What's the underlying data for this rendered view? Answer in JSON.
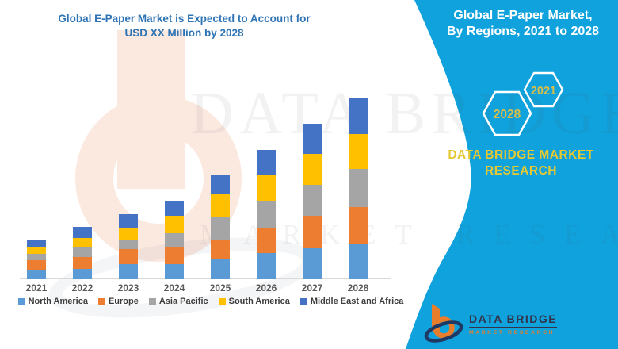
{
  "chart": {
    "title_line1": "Global E-Paper Market is Expected to Account for",
    "title_line2": "USD XX Million by 2028",
    "title_color": "#2E74B5",
    "axis_line_color": "#D9D9D9",
    "axis_label_color": "#595959"
  },
  "chart_data": {
    "type": "bar",
    "stacked": true,
    "title": "Global E-Paper Market is Expected to Account for USD XX Million by 2028",
    "categories": [
      "2021",
      "2022",
      "2023",
      "2024",
      "2025",
      "2026",
      "2027",
      "2028"
    ],
    "series": [
      {
        "name": "North America",
        "color": "#5B9BD5",
        "values": [
          12,
          13,
          19,
          19,
          26,
          33,
          39,
          44
        ]
      },
      {
        "name": "Europe",
        "color": "#ED7D31",
        "values": [
          12,
          15,
          19,
          21,
          23,
          32,
          41,
          47
        ]
      },
      {
        "name": "Asia Pacific",
        "color": "#A5A5A5",
        "values": [
          8,
          13,
          12,
          18,
          30,
          34,
          39,
          48
        ]
      },
      {
        "name": "South America",
        "color": "#FFC000",
        "values": [
          9,
          11,
          15,
          22,
          28,
          32,
          39,
          44
        ]
      },
      {
        "name": "Middle East and Africa",
        "color": "#4472C4",
        "values": [
          9,
          14,
          17,
          19,
          24,
          32,
          38,
          45
        ]
      }
    ],
    "totals": [
      50,
      66,
      82,
      99,
      131,
      163,
      196,
      228
    ],
    "xlabel": "",
    "ylabel": "",
    "ylim": [
      0,
      240
    ],
    "y_axis_labeled": false,
    "gridlines": false,
    "legend_position": "bottom",
    "note": "Y values estimated from bar pixel heights; axis is unlabeled (values shown as USD XX Million)"
  },
  "panel": {
    "bg_color": "#0FA2DC",
    "title_line1": "Global E-Paper Market,",
    "title_line2": "By Regions, 2021 to 2028",
    "hexagons": [
      {
        "label": "2028"
      },
      {
        "label": "2021"
      }
    ],
    "hex_text_color": "#D9BE49",
    "hex_stroke_color": "#FFFFFF",
    "brand_line1": "DATA BRIDGE MARKET",
    "brand_line2": "RESEARCH",
    "brand_color": "#E5C832"
  },
  "logo": {
    "wordmark": "DATA BRIDGE",
    "tagline": "MARKET RESEARCH",
    "orange": "#E87E2B",
    "navy": "#1F3864",
    "text_color": "#33334A"
  },
  "watermark": {
    "line1": "DATA BRIDGE",
    "line2": "MARKET RESEARCH"
  }
}
